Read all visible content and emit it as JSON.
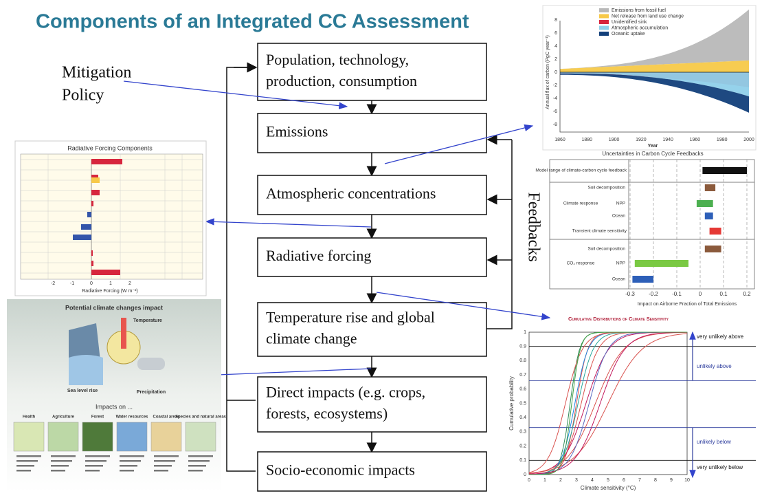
{
  "title": "Components of an Integrated CC Assessment",
  "mitigation": [
    "Mitigation",
    "Policy"
  ],
  "boxes": [
    [
      "Population, technology,",
      "production, consumption"
    ],
    [
      "Emissions"
    ],
    [
      "Atmospheric concentrations"
    ],
    [
      "Radiative forcing"
    ],
    [
      "Temperature rise and global",
      "climate change"
    ],
    [
      "Direct impacts (e.g. crops,",
      "forests, ecosystems)"
    ],
    [
      "Socio-economic impacts"
    ]
  ],
  "feedbacks": "Feedbacks",
  "thumbnails": {
    "carbon_flux": {
      "legend": [
        "Emissions from fossil fuel",
        "Net release from land use change",
        "Unidentified sink",
        "Atmospheric accumulation",
        "Oceanic uptake"
      ],
      "ylabel": "Annual flux of carbon (PgC year⁻¹)",
      "xlabel": "Year",
      "xticks": [
        "1860",
        "1880",
        "1900",
        "1920",
        "1940",
        "1960",
        "1980",
        "2000"
      ],
      "yticks": [
        "8",
        "6",
        "4",
        "2",
        "0",
        "-2",
        "-4",
        "-6",
        "-8"
      ]
    },
    "forcing": {
      "title": "Radiative Forcing Components",
      "xlabel": "Radiative Forcing (W m⁻²)",
      "xticks": [
        "-2",
        "-1",
        "0",
        "1",
        "2"
      ]
    },
    "impacts": {
      "title": "Potential climate changes impact",
      "labels": [
        "Temperature",
        "Sea level rise",
        "Precipitation"
      ],
      "subtitle": "Impacts on ...",
      "sectors": [
        "Health",
        "Agriculture",
        "Forest",
        "Water resources",
        "Coastal areas",
        "Species and natural areas"
      ]
    },
    "carbon_feedbacks": {
      "title": "Uncertainties in Carbon Cycle Feedbacks",
      "rows": [
        "Model range of climate-carbon cycle feedback",
        "Soil decomposition",
        "NPP",
        "Ocean",
        "Transient climate sensitivity",
        "Soil decomposition",
        "NPP",
        "Ocean"
      ],
      "groups": [
        "Climate response",
        "CO₂ response"
      ],
      "xlabel": "Impact on Airborne Fraction of Total Emissions",
      "xticks": [
        "-0.3",
        "-0.2",
        "-0.1",
        "0",
        "0.1",
        "0.2"
      ]
    },
    "sensitivity": {
      "title": "Cumulative Distributions of Climate Sensitivity",
      "ylabel": "Cumulative probability",
      "xlabel": "Climate sensitivity (°C)",
      "xticks": [
        "0",
        "1",
        "2",
        "3",
        "4",
        "5",
        "6",
        "7",
        "8",
        "9",
        "10"
      ],
      "yticks": [
        "0",
        "0.1",
        "0.2",
        "0.3",
        "0.4",
        "0.5",
        "0.6",
        "0.7",
        "0.8",
        "0.9",
        "1"
      ],
      "bands": [
        "very unlikely above",
        "unlikely above",
        "unlikely below",
        "very unlikely below"
      ]
    }
  }
}
